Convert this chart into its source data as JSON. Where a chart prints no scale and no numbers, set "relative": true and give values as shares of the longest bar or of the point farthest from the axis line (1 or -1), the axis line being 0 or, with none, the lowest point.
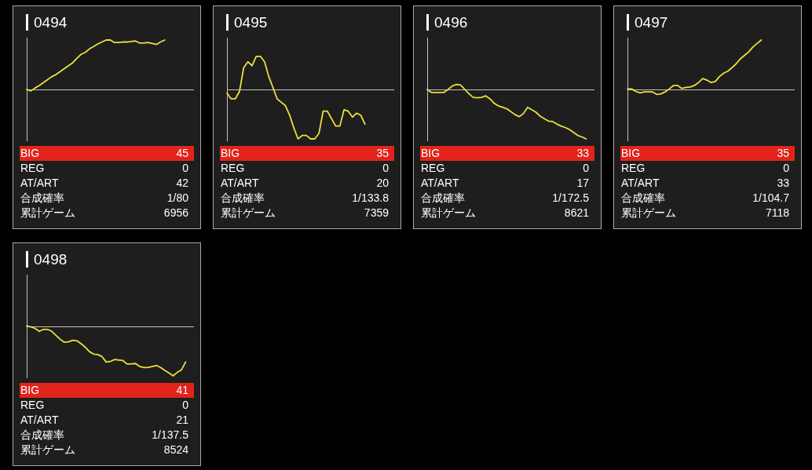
{
  "chart_data": [
    {
      "type": "line",
      "title": "0494",
      "relative": true,
      "color": "#ecdf3c",
      "categories": [
        null,
        null,
        null,
        null,
        null,
        null,
        null,
        null,
        null,
        null,
        null,
        null,
        null,
        null,
        null,
        null,
        null,
        null,
        null,
        null,
        null,
        null,
        null,
        null,
        null,
        null,
        null,
        null,
        null,
        null,
        null,
        null,
        null,
        null,
        null,
        null,
        null,
        null,
        null,
        null,
        null
      ],
      "values": [
        0,
        -0.03,
        0.03,
        0.08,
        0.14,
        0.2,
        0.26,
        0.3,
        0.36,
        0.42,
        0.48,
        0.54,
        0.63,
        0.71,
        0.75,
        0.82,
        0.87,
        0.92,
        0.96,
        1,
        1,
        0.95,
        0.95,
        0.96,
        0.96,
        0.97,
        0.98,
        0.94,
        0.94,
        0.95,
        0.93,
        0.91,
        0.96,
        1,
        null,
        null,
        null,
        null,
        null,
        null,
        null
      ],
      "annotations": [
        "BIG",
        "45",
        "REG",
        "0",
        "AT/ART",
        "42",
        "合成確率",
        "1/80",
        "累計ゲーム",
        "6956"
      ]
    },
    {
      "type": "line",
      "title": "0495",
      "relative": true,
      "color": "#ecdf3c",
      "categories": [
        null,
        null,
        null,
        null,
        null,
        null,
        null,
        null,
        null,
        null,
        null,
        null,
        null,
        null,
        null,
        null,
        null,
        null,
        null,
        null,
        null,
        null,
        null,
        null,
        null,
        null,
        null,
        null,
        null,
        null,
        null,
        null,
        null,
        null,
        null,
        null,
        null,
        null,
        null,
        null,
        null
      ],
      "values": [
        -0.07,
        -0.19,
        -0.19,
        -0.04,
        0.44,
        0.56,
        0.48,
        0.67,
        0.67,
        0.56,
        0.26,
        0.04,
        -0.19,
        -0.26,
        -0.33,
        -0.52,
        -0.78,
        -1,
        -0.93,
        -0.93,
        -1,
        -1,
        -0.89,
        -0.44,
        -0.44,
        -0.59,
        -0.74,
        -0.74,
        -0.41,
        -0.44,
        -0.56,
        -0.48,
        -0.52,
        -0.7,
        null,
        null,
        null,
        null,
        null,
        null,
        null
      ],
      "annotations": [
        "BIG",
        "35",
        "REG",
        "0",
        "AT/ART",
        "20",
        "合成確率",
        "1/133.8",
        "累計ゲーム",
        "7359"
      ]
    },
    {
      "type": "line",
      "title": "0496",
      "relative": true,
      "color": "#ecdf3c",
      "categories": [
        null,
        null,
        null,
        null,
        null,
        null,
        null,
        null,
        null,
        null,
        null,
        null,
        null,
        null,
        null,
        null,
        null,
        null,
        null,
        null,
        null,
        null,
        null,
        null,
        null,
        null,
        null,
        null,
        null,
        null,
        null,
        null,
        null,
        null,
        null,
        null,
        null,
        null,
        null,
        null,
        null
      ],
      "values": [
        0,
        -0.06,
        -0.06,
        -0.06,
        -0.06,
        0,
        0.07,
        0.1,
        0.09,
        0,
        -0.09,
        -0.16,
        -0.17,
        -0.16,
        -0.13,
        -0.19,
        -0.28,
        -0.33,
        -0.36,
        -0.39,
        -0.45,
        -0.51,
        -0.55,
        -0.49,
        -0.36,
        -0.41,
        -0.46,
        -0.54,
        -0.59,
        -0.64,
        -0.65,
        -0.7,
        -0.74,
        -0.77,
        -0.81,
        -0.87,
        -0.93,
        -0.96,
        -1,
        null,
        null
      ],
      "annotations": [
        "BIG",
        "33",
        "REG",
        "0",
        "AT/ART",
        "17",
        "合成確率",
        "1/172.5",
        "累計ゲーム",
        "8621"
      ]
    },
    {
      "type": "line",
      "title": "0497",
      "relative": true,
      "color": "#ecdf3c",
      "categories": [
        null,
        null,
        null,
        null,
        null,
        null,
        null,
        null,
        null,
        null,
        null,
        null,
        null,
        null,
        null,
        null,
        null,
        null,
        null,
        null,
        null,
        null,
        null,
        null,
        null,
        null,
        null,
        null,
        null,
        null,
        null,
        null,
        null,
        null,
        null,
        null,
        null,
        null,
        null,
        null,
        null
      ],
      "values": [
        0.01,
        0.01,
        -0.04,
        -0.07,
        -0.05,
        -0.05,
        -0.05,
        -0.1,
        -0.09,
        -0.05,
        0.01,
        0.08,
        0.08,
        0.02,
        0.04,
        0.05,
        0.08,
        0.14,
        0.22,
        0.19,
        0.14,
        0.16,
        0.26,
        0.33,
        0.37,
        0.44,
        0.52,
        0.62,
        0.69,
        0.76,
        0.86,
        0.93,
        1,
        null,
        null,
        null,
        null,
        null,
        null,
        null,
        null
      ],
      "annotations": [
        "BIG",
        "35",
        "REG",
        "0",
        "AT/ART",
        "33",
        "合成確率",
        "1/104.7",
        "累計ゲーム",
        "7118"
      ]
    },
    {
      "type": "line",
      "title": "0498",
      "relative": true,
      "color": "#ecdf3c",
      "categories": [
        null,
        null,
        null,
        null,
        null,
        null,
        null,
        null,
        null,
        null,
        null,
        null,
        null,
        null,
        null,
        null,
        null,
        null,
        null,
        null,
        null,
        null,
        null,
        null,
        null,
        null,
        null,
        null,
        null,
        null,
        null,
        null,
        null,
        null,
        null,
        null,
        null,
        null,
        null,
        null,
        null
      ],
      "values": [
        0.01,
        -0.01,
        -0.04,
        -0.1,
        -0.06,
        -0.06,
        -0.1,
        -0.18,
        -0.26,
        -0.32,
        -0.31,
        -0.28,
        -0.29,
        -0.35,
        -0.42,
        -0.51,
        -0.56,
        -0.57,
        -0.61,
        -0.72,
        -0.71,
        -0.67,
        -0.68,
        -0.69,
        -0.76,
        -0.76,
        -0.75,
        -0.81,
        -0.83,
        -0.83,
        -0.81,
        -0.79,
        -0.83,
        -0.89,
        -0.94,
        -1,
        -0.93,
        -0.88,
        -0.72,
        null,
        null
      ],
      "annotations": [
        "BIG",
        "41",
        "REG",
        "0",
        "AT/ART",
        "21",
        "合成確率",
        "1/137.5",
        "累計ゲーム",
        "8524"
      ]
    }
  ]
}
